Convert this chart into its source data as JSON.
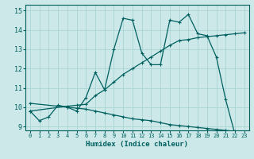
{
  "title": "",
  "xlabel": "Humidex (Indice chaleur)",
  "ylabel": "",
  "x_ticks": [
    0,
    1,
    2,
    3,
    4,
    5,
    6,
    7,
    8,
    9,
    10,
    11,
    12,
    13,
    14,
    15,
    16,
    17,
    18,
    19,
    20,
    21,
    22,
    23
  ],
  "xlim": [
    -0.5,
    23.5
  ],
  "ylim": [
    8.8,
    15.3
  ],
  "yticks": [
    9,
    10,
    11,
    12,
    13,
    14,
    15
  ],
  "bg_color": "#cce8e8",
  "line_color": "#006060",
  "grid_color": "#aad4d4",
  "line1_x": [
    0,
    1,
    2,
    3,
    4,
    5,
    6,
    7,
    8,
    9,
    10,
    11,
    12,
    13,
    14,
    15,
    16,
    17,
    18,
    19,
    20,
    21,
    22,
    23
  ],
  "line1_y": [
    9.8,
    9.3,
    9.5,
    10.1,
    10.0,
    9.8,
    10.5,
    11.8,
    10.9,
    13.0,
    14.6,
    14.5,
    12.8,
    12.2,
    12.2,
    14.5,
    14.4,
    14.8,
    13.8,
    13.7,
    12.6,
    10.4,
    8.6,
    8.55
  ],
  "line2_x": [
    0,
    4,
    5,
    6,
    7,
    8,
    9,
    10,
    11,
    12,
    13,
    14,
    15,
    16,
    17,
    18,
    19,
    20,
    21,
    22,
    23
  ],
  "line2_y": [
    9.8,
    10.05,
    10.1,
    10.15,
    10.6,
    10.9,
    11.3,
    11.7,
    12.0,
    12.3,
    12.6,
    12.9,
    13.2,
    13.45,
    13.5,
    13.6,
    13.65,
    13.7,
    13.75,
    13.8,
    13.85
  ],
  "line3_x": [
    0,
    4,
    5,
    6,
    7,
    8,
    9,
    10,
    11,
    12,
    13,
    14,
    15,
    16,
    17,
    18,
    19,
    20,
    21,
    22,
    23
  ],
  "line3_y": [
    10.2,
    10.0,
    9.95,
    9.9,
    9.8,
    9.7,
    9.6,
    9.5,
    9.4,
    9.35,
    9.3,
    9.2,
    9.1,
    9.05,
    9.0,
    8.95,
    8.9,
    8.85,
    8.8,
    8.75,
    8.7
  ]
}
